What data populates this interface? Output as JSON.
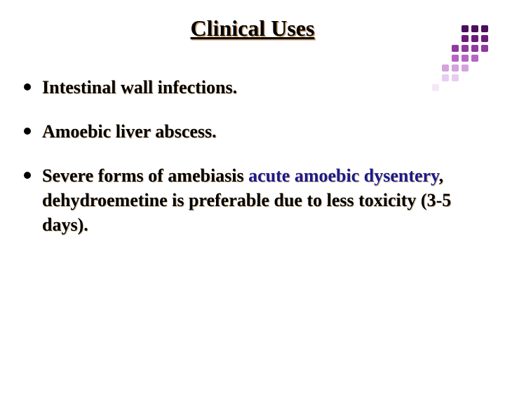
{
  "title": "Clinical Uses",
  "title_color": "#000000",
  "title_shadow": "#cc9966",
  "title_fontsize": 32,
  "body_fontsize": 26,
  "body_color": "#000000",
  "body_shadow": "#d4b896",
  "highlight_color": "#1a1a8f",
  "background": "#ffffff",
  "bullets": [
    {
      "text": "Intestinal wall infections."
    },
    {
      "text": "Amoebic liver abscess."
    },
    {
      "prefix": "Severe forms of amebiasis ",
      "highlight": "acute amoebic dysentery",
      "suffix": ", dehydroemetine is preferable due to less toxicity (3-5 days)."
    }
  ],
  "decoration": {
    "rows": 7,
    "cols": 6,
    "colors": [
      [
        "",
        "",
        "",
        "#4a0e5c",
        "#4a0e5c",
        "#4a0e5c"
      ],
      [
        "",
        "",
        "",
        "#6b1a7a",
        "#6b1a7a",
        "#6b1a7a"
      ],
      [
        "",
        "",
        "#8e3a9e",
        "#8e3a9e",
        "#8e3a9e",
        "#8e3a9e"
      ],
      [
        "",
        "",
        "#b566c4",
        "#b566c4",
        "#b566c4",
        ""
      ],
      [
        "",
        "#d4a3de",
        "#d4a3de",
        "#d4a3de",
        "",
        ""
      ],
      [
        "",
        "#e8cdef",
        "#e8cdef",
        "",
        "",
        ""
      ],
      [
        "#f4e8f7",
        "",
        "",
        "",
        "",
        ""
      ]
    ]
  }
}
